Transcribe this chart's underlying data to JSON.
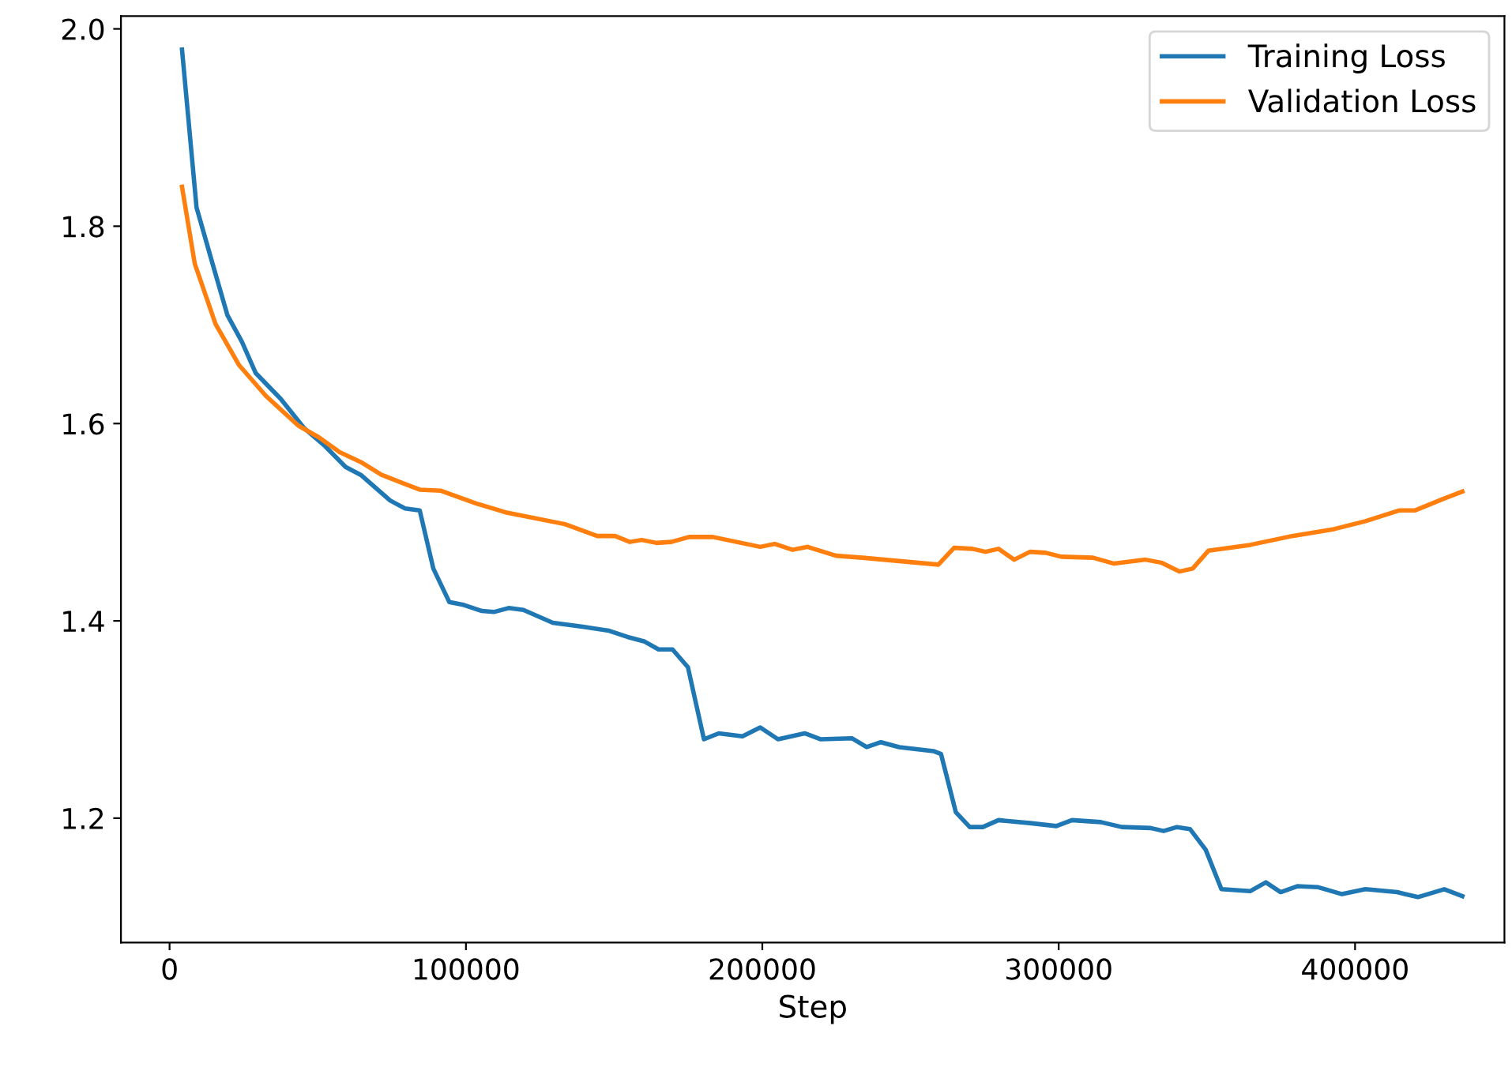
{
  "chart_data": {
    "type": "line",
    "xlabel": "Step",
    "xlim": [
      -16400,
      450400
    ],
    "ylim": [
      1.074,
      2.013
    ],
    "xticks": [
      0,
      100000,
      200000,
      300000,
      400000
    ],
    "yticks": [
      {
        "value": 1.2,
        "label": "1.2"
      },
      {
        "value": 1.4,
        "label": "1.4"
      },
      {
        "value": 1.6,
        "label": "1.6"
      },
      {
        "value": 1.8,
        "label": "1.8"
      },
      {
        "value": 2.0,
        "label": "2.0"
      }
    ],
    "grid": false,
    "legend": "top right",
    "marker": "none",
    "line_style": "solid",
    "series": [
      {
        "name": "Training Loss",
        "color": "#1f77b4",
        "x": [
          4200,
          9100,
          14500,
          19500,
          24400,
          29100,
          37500,
          45500,
          52500,
          59400,
          64500,
          74400,
          79400,
          84400,
          89000,
          94400,
          99400,
          105400,
          109400,
          114400,
          119400,
          129300,
          139400,
          148300,
          155300,
          160300,
          165000,
          169700,
          174900,
          180300,
          185300,
          193300,
          199300,
          205300,
          214300,
          219600,
          230200,
          235200,
          240000,
          246200,
          257700,
          260300,
          265300,
          270000,
          274400,
          279700,
          290300,
          299200,
          304500,
          314200,
          321300,
          331000,
          335400,
          339900,
          344300,
          349600,
          354900,
          364600,
          369900,
          374900,
          380500,
          387600,
          395600,
          403500,
          414200,
          421200,
          430100,
          436200
        ],
        "values": [
          1.979,
          1.819,
          1.762,
          1.71,
          1.683,
          1.651,
          1.625,
          1.595,
          1.577,
          1.556,
          1.548,
          1.522,
          1.514,
          1.512,
          1.453,
          1.419,
          1.416,
          1.41,
          1.409,
          1.413,
          1.411,
          1.398,
          1.394,
          1.39,
          1.383,
          1.379,
          1.371,
          1.371,
          1.353,
          1.28,
          1.286,
          1.283,
          1.292,
          1.28,
          1.286,
          1.28,
          1.281,
          1.272,
          1.277,
          1.272,
          1.268,
          1.265,
          1.206,
          1.191,
          1.191,
          1.198,
          1.195,
          1.192,
          1.198,
          1.196,
          1.191,
          1.19,
          1.187,
          1.191,
          1.189,
          1.168,
          1.128,
          1.126,
          1.135,
          1.125,
          1.131,
          1.13,
          1.123,
          1.128,
          1.125,
          1.12,
          1.128,
          1.121
        ]
      },
      {
        "name": "Validation Loss",
        "color": "#ff7f0e",
        "x": [
          4200,
          8500,
          15500,
          23500,
          32500,
          43400,
          50400,
          57400,
          64500,
          71500,
          84400,
          91400,
          103400,
          113400,
          133400,
          144300,
          150300,
          155300,
          159300,
          164300,
          169300,
          175300,
          183300,
          199300,
          204200,
          210200,
          215200,
          224900,
          233800,
          259400,
          264700,
          270900,
          275300,
          279700,
          285000,
          290300,
          295600,
          300900,
          311600,
          318700,
          329300,
          334600,
          340700,
          345200,
          350500,
          364600,
          378800,
          392900,
          403500,
          415000,
          420300,
          430100,
          436200
        ],
        "values": [
          1.84,
          1.762,
          1.701,
          1.659,
          1.628,
          1.598,
          1.586,
          1.571,
          1.561,
          1.548,
          1.533,
          1.532,
          1.519,
          1.51,
          1.498,
          1.486,
          1.486,
          1.48,
          1.482,
          1.479,
          1.48,
          1.485,
          1.485,
          1.475,
          1.478,
          1.472,
          1.475,
          1.466,
          1.464,
          1.457,
          1.474,
          1.473,
          1.47,
          1.473,
          1.462,
          1.47,
          1.469,
          1.465,
          1.464,
          1.458,
          1.462,
          1.459,
          1.45,
          1.453,
          1.471,
          1.477,
          1.486,
          1.493,
          1.501,
          1.512,
          1.512,
          1.524,
          1.531
        ]
      }
    ]
  }
}
